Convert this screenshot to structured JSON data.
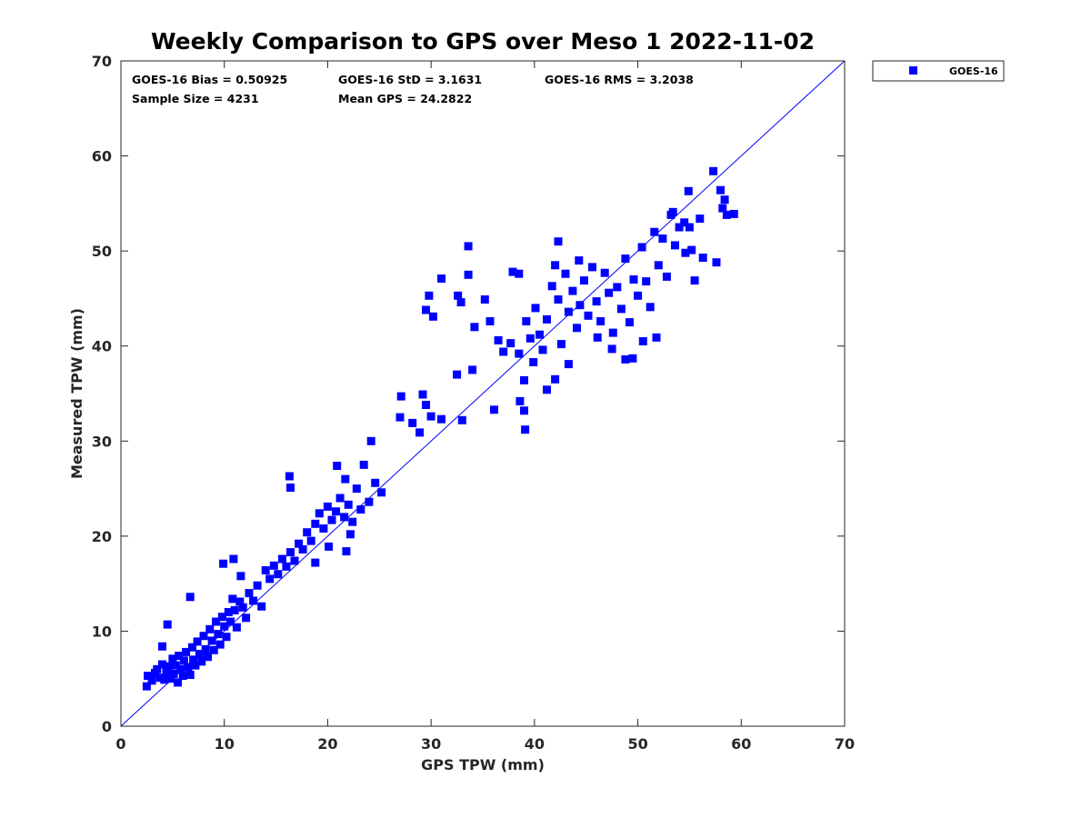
{
  "colors": {
    "series": "#0000ff",
    "axis": "#262626",
    "background": "#ffffff"
  },
  "stats": {
    "bias": "GOES-16 Bias = 0.50925",
    "std": "GOES-16 StD = 3.1631",
    "rms": "GOES-16 RMS = 3.2038",
    "sample": "Sample Size = 4231",
    "mean": "Mean GPS = 24.2822"
  },
  "chart_data": {
    "type": "scatter",
    "title": "Weekly Comparison to GPS over Meso 1 2022-11-02",
    "xlabel": "GPS TPW (mm)",
    "ylabel": "Measured TPW (mm)",
    "xlim": [
      0,
      70
    ],
    "ylim": [
      0,
      70
    ],
    "xticks": [
      "0",
      "10",
      "20",
      "30",
      "40",
      "50",
      "60",
      "70"
    ],
    "yticks": [
      "0",
      "10",
      "20",
      "30",
      "40",
      "50",
      "60",
      "70"
    ],
    "grid": false,
    "legend": {
      "position": "outside-top-right"
    },
    "reference_line": {
      "x": [
        0,
        70
      ],
      "y": [
        0,
        70
      ]
    },
    "series": [
      {
        "name": "GOES-16",
        "marker": "square",
        "points": [
          [
            2.5,
            4.2
          ],
          [
            2.6,
            5.3
          ],
          [
            3.0,
            4.8
          ],
          [
            3.3,
            5.6
          ],
          [
            3.5,
            6.0
          ],
          [
            3.8,
            5.1
          ],
          [
            4.0,
            6.5
          ],
          [
            4.2,
            4.9
          ],
          [
            4.4,
            5.7
          ],
          [
            4.6,
            6.3
          ],
          [
            4.8,
            5.0
          ],
          [
            5.0,
            7.1
          ],
          [
            5.1,
            5.5
          ],
          [
            5.3,
            6.4
          ],
          [
            5.5,
            4.6
          ],
          [
            5.6,
            7.4
          ],
          [
            5.8,
            6.0
          ],
          [
            6.0,
            5.3
          ],
          [
            6.1,
            6.9
          ],
          [
            6.3,
            7.8
          ],
          [
            6.5,
            6.2
          ],
          [
            6.7,
            5.4
          ],
          [
            6.9,
            8.3
          ],
          [
            7.0,
            7.0
          ],
          [
            7.2,
            6.4
          ],
          [
            7.4,
            8.9
          ],
          [
            7.6,
            7.6
          ],
          [
            7.8,
            6.8
          ],
          [
            8.0,
            9.5
          ],
          [
            8.2,
            8.1
          ],
          [
            8.4,
            7.3
          ],
          [
            8.6,
            10.2
          ],
          [
            8.8,
            9.0
          ],
          [
            9.0,
            8.0
          ],
          [
            9.2,
            11.0
          ],
          [
            9.4,
            9.7
          ],
          [
            9.6,
            8.6
          ],
          [
            9.8,
            11.5
          ],
          [
            10.0,
            10.5
          ],
          [
            10.2,
            9.4
          ],
          [
            10.4,
            12.0
          ],
          [
            10.6,
            11.0
          ],
          [
            10.8,
            13.4
          ],
          [
            11.0,
            12.2
          ],
          [
            11.2,
            10.4
          ],
          [
            11.5,
            13.1
          ],
          [
            11.8,
            12.5
          ],
          [
            12.1,
            11.4
          ],
          [
            12.4,
            14.0
          ],
          [
            12.8,
            13.2
          ],
          [
            13.2,
            14.8
          ],
          [
            13.6,
            12.6
          ],
          [
            14.0,
            16.4
          ],
          [
            14.4,
            15.5
          ],
          [
            14.8,
            16.9
          ],
          [
            15.2,
            16.0
          ],
          [
            15.6,
            17.6
          ],
          [
            16.0,
            16.8
          ],
          [
            16.4,
            18.3
          ],
          [
            16.8,
            17.4
          ],
          [
            17.2,
            19.2
          ],
          [
            17.6,
            18.6
          ],
          [
            18.0,
            20.4
          ],
          [
            18.4,
            19.5
          ],
          [
            18.8,
            21.3
          ],
          [
            19.2,
            22.4
          ],
          [
            19.6,
            20.8
          ],
          [
            20.0,
            23.1
          ],
          [
            20.4,
            21.7
          ],
          [
            20.8,
            22.6
          ],
          [
            21.2,
            24.0
          ],
          [
            21.6,
            22.0
          ],
          [
            22.0,
            23.3
          ],
          [
            22.4,
            21.5
          ],
          [
            22.8,
            25.0
          ],
          [
            23.2,
            22.8
          ],
          [
            24.0,
            23.6
          ],
          [
            25.2,
            24.6
          ],
          [
            4.5,
            10.7
          ],
          [
            4.0,
            8.4
          ],
          [
            6.7,
            13.6
          ],
          [
            9.9,
            17.1
          ],
          [
            10.9,
            17.6
          ],
          [
            11.6,
            15.8
          ],
          [
            16.3,
            26.3
          ],
          [
            16.4,
            25.1
          ],
          [
            20.9,
            27.4
          ],
          [
            21.7,
            26.0
          ],
          [
            24.2,
            30.0
          ],
          [
            23.5,
            27.5
          ],
          [
            24.6,
            25.6
          ],
          [
            18.8,
            17.2
          ],
          [
            20.1,
            18.9
          ],
          [
            21.8,
            18.4
          ],
          [
            22.2,
            20.2
          ],
          [
            27.1,
            34.7
          ],
          [
            27.0,
            32.5
          ],
          [
            28.2,
            31.9
          ],
          [
            28.9,
            30.9
          ],
          [
            29.2,
            34.9
          ],
          [
            29.5,
            33.8
          ],
          [
            30.0,
            32.6
          ],
          [
            31.0,
            32.3
          ],
          [
            33.0,
            32.2
          ],
          [
            32.5,
            37.0
          ],
          [
            34.0,
            37.5
          ],
          [
            36.1,
            33.3
          ],
          [
            29.5,
            43.8
          ],
          [
            29.8,
            45.3
          ],
          [
            30.2,
            43.1
          ],
          [
            31.0,
            47.1
          ],
          [
            32.6,
            45.3
          ],
          [
            32.9,
            44.6
          ],
          [
            33.6,
            47.5
          ],
          [
            33.6,
            50.5
          ],
          [
            34.2,
            42.0
          ],
          [
            35.2,
            44.9
          ],
          [
            35.7,
            42.6
          ],
          [
            37.9,
            47.8
          ],
          [
            38.5,
            47.6
          ],
          [
            36.5,
            40.6
          ],
          [
            37.0,
            39.4
          ],
          [
            37.7,
            40.3
          ],
          [
            38.5,
            39.2
          ],
          [
            39.0,
            36.4
          ],
          [
            39.2,
            42.6
          ],
          [
            39.6,
            40.8
          ],
          [
            39.9,
            38.3
          ],
          [
            40.1,
            44.0
          ],
          [
            40.5,
            41.2
          ],
          [
            40.8,
            39.6
          ],
          [
            41.2,
            42.8
          ],
          [
            41.7,
            46.3
          ],
          [
            42.0,
            48.5
          ],
          [
            42.3,
            44.9
          ],
          [
            42.6,
            40.2
          ],
          [
            43.0,
            47.6
          ],
          [
            43.3,
            43.6
          ],
          [
            43.7,
            45.8
          ],
          [
            44.1,
            41.9
          ],
          [
            44.4,
            44.3
          ],
          [
            44.8,
            46.9
          ],
          [
            45.2,
            43.2
          ],
          [
            45.6,
            48.3
          ],
          [
            46.0,
            44.7
          ],
          [
            46.4,
            42.6
          ],
          [
            46.8,
            47.7
          ],
          [
            47.2,
            45.6
          ],
          [
            47.6,
            41.4
          ],
          [
            48.0,
            46.2
          ],
          [
            48.4,
            43.9
          ],
          [
            48.8,
            49.2
          ],
          [
            49.2,
            42.5
          ],
          [
            49.6,
            47.0
          ],
          [
            50.0,
            45.3
          ],
          [
            50.4,
            50.4
          ],
          [
            50.8,
            46.8
          ],
          [
            51.2,
            44.1
          ],
          [
            51.6,
            52.0
          ],
          [
            52.0,
            48.5
          ],
          [
            52.4,
            51.3
          ],
          [
            52.8,
            47.3
          ],
          [
            53.2,
            53.8
          ],
          [
            53.6,
            50.6
          ],
          [
            54.0,
            52.5
          ],
          [
            39.1,
            31.2
          ],
          [
            38.6,
            34.2
          ],
          [
            39.0,
            33.2
          ],
          [
            41.2,
            35.4
          ],
          [
            42.0,
            36.5
          ],
          [
            43.3,
            38.1
          ],
          [
            42.3,
            51.0
          ],
          [
            44.3,
            49.0
          ],
          [
            46.1,
            40.9
          ],
          [
            47.5,
            39.7
          ],
          [
            48.8,
            38.6
          ],
          [
            49.5,
            38.7
          ],
          [
            50.5,
            40.5
          ],
          [
            51.8,
            40.9
          ],
          [
            55.0,
            52.5
          ],
          [
            55.5,
            46.9
          ],
          [
            55.2,
            50.1
          ],
          [
            56.0,
            53.4
          ],
          [
            57.3,
            58.4
          ],
          [
            57.6,
            48.8
          ],
          [
            58.0,
            56.4
          ],
          [
            58.4,
            55.4
          ],
          [
            58.2,
            54.5
          ],
          [
            58.6,
            53.8
          ],
          [
            59.3,
            53.9
          ],
          [
            54.9,
            56.3
          ],
          [
            56.3,
            49.3
          ],
          [
            54.6,
            49.8
          ],
          [
            54.5,
            53.0
          ],
          [
            53.4,
            54.1
          ]
        ]
      }
    ]
  }
}
